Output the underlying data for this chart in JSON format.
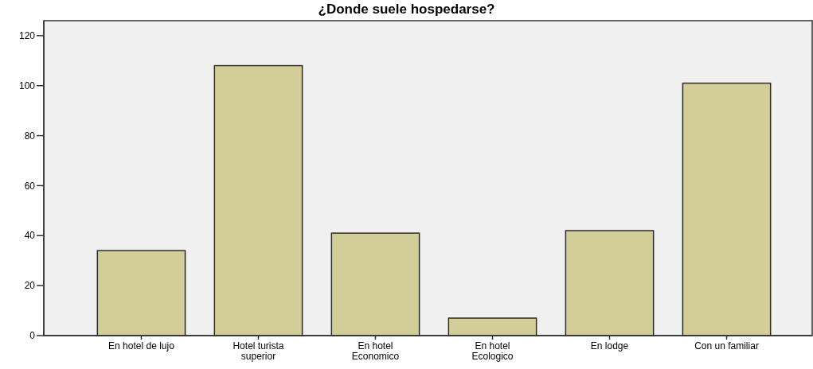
{
  "chart_data": {
    "type": "bar",
    "title": "¿Donde suele hospedarse?",
    "categories": [
      "En hotel de lujo",
      "Hotel turista superior",
      "En hotel Economico",
      "En hotel Ecologico",
      "En lodge",
      "Con un familiar"
    ],
    "values": [
      34,
      108,
      41,
      7,
      42,
      101
    ],
    "color": "#d3ce97",
    "ylim": [
      0,
      126
    ],
    "yticks": [
      0,
      20,
      40,
      60,
      80,
      100,
      120
    ]
  }
}
